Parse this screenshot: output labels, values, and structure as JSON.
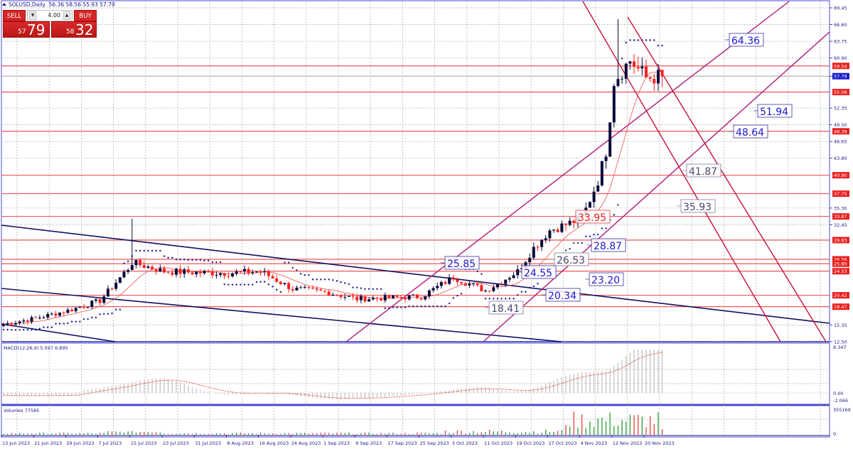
{
  "header": {
    "symbol": "SOLUSD,Daily",
    "ohlc": "56.36 58.56 55.93 57.79"
  },
  "trade_panel": {
    "sell_label": "SELL",
    "buy_label": "BUY",
    "lot_value": "4.00",
    "sell_price_small": "57",
    "sell_price_big": "79",
    "buy_price_small": "58",
    "buy_price_big": "32"
  },
  "colors": {
    "bull_candle": "#0a0a3c",
    "bear_candle": "#ff2020",
    "level_line": "#e84545",
    "channel_up": "#b0177a",
    "channel_down": "#c8103c",
    "trend_navy": "#101060",
    "axis_text": "#1a1a8c",
    "price_tag_red": "#e82020",
    "price_tag_blue": "#1a1acc"
  },
  "price_axis": {
    "ticks": [
      "69.45",
      "66.60",
      "63.75",
      "60.90",
      "57.79",
      "52.35",
      "49.50",
      "46.65",
      "43.80",
      "35.30",
      "32.45",
      "15.35",
      "12.50"
    ],
    "current_price": "57.79"
  },
  "level_tags": [
    "59.54",
    "55.08",
    "48.39",
    "40.90",
    "37.75",
    "33.87",
    "29.83",
    "26.56",
    "25.80",
    "24.53",
    "20.42",
    "18.47"
  ],
  "annotations": [
    {
      "text": "64.36",
      "style": "blue"
    },
    {
      "text": "51.94",
      "style": "blue"
    },
    {
      "text": "48.64",
      "style": "blue"
    },
    {
      "text": "41.87",
      "style": "gray"
    },
    {
      "text": "35.93",
      "style": "gray"
    },
    {
      "text": "33.95",
      "style": "red"
    },
    {
      "text": "28.87",
      "style": "blue"
    },
    {
      "text": "26.53",
      "style": "gray"
    },
    {
      "text": "25.85",
      "style": "blue"
    },
    {
      "text": "24.55",
      "style": "blue"
    },
    {
      "text": "23.20",
      "style": "blue"
    },
    {
      "text": "20.34",
      "style": "blue"
    },
    {
      "text": "18.41",
      "style": "gray"
    }
  ],
  "macd": {
    "label": "MACD(12,26,9) 5.597 6.895",
    "axis_max": "8.347",
    "axis_zero": "0.00",
    "axis_min": "-2.066"
  },
  "volumes": {
    "label": "Volumes 77585",
    "axis_max": "355169",
    "axis_min": "0"
  },
  "dates": [
    "13 Jun 2023",
    "21 Jun 2023",
    "29 Jun 2023",
    "7 Jul 2023",
    "15 Jul 2023",
    "23 Jul 2023",
    "31 Jul 2023",
    "8 Aug 2023",
    "16 Aug 2023",
    "24 Aug 2023",
    "1 Sep 2023",
    "9 Sep 2023",
    "17 Sep 2023",
    "25 Sep 2023",
    "3 Oct 2023",
    "11 Oct 2023",
    "19 Oct 2023",
    "27 Oct 2023",
    "4 Nov 2023",
    "12 Nov 2023",
    "20 Nov 2023"
  ],
  "chart_data": {
    "type": "candlestick",
    "title": "SOLUSD, Daily",
    "symbol": "SOLUSD",
    "timeframe": "Daily",
    "last_bar": {
      "open": 56.36,
      "high": 58.56,
      "low": 55.93,
      "close": 57.79
    },
    "bid": 57.79,
    "ask": 58.32,
    "x_range": [
      "13 Jun 2023",
      "24 Nov 2023"
    ],
    "y_range": [
      12.5,
      69.45
    ],
    "horizontal_levels": [
      59.54,
      55.08,
      48.39,
      40.9,
      37.75,
      33.87,
      29.83,
      26.56,
      25.8,
      24.53,
      20.42,
      18.47
    ],
    "price_annotations": [
      64.36,
      51.94,
      48.64,
      41.87,
      35.93,
      33.95,
      28.87,
      26.53,
      25.85,
      24.55,
      23.2,
      20.34,
      18.41
    ],
    "approx_closes": {
      "x": [
        "13 Jun",
        "21 Jun",
        "29 Jun",
        "7 Jul",
        "14 Jul",
        "15 Jul",
        "23 Jul",
        "31 Jul",
        "8 Aug",
        "16 Aug",
        "24 Aug",
        "1 Sep",
        "9 Sep",
        "17 Sep",
        "25 Sep",
        "3 Oct",
        "11 Oct",
        "19 Oct",
        "23 Oct",
        "27 Oct",
        "4 Nov",
        "8 Nov",
        "10 Nov",
        "12 Nov",
        "16 Nov",
        "20 Nov",
        "24 Nov"
      ],
      "close": [
        15.5,
        16.5,
        17.8,
        19.5,
        25.0,
        26.0,
        24.5,
        24.3,
        24.2,
        24.5,
        21.5,
        21.0,
        19.8,
        20.0,
        20.2,
        23.5,
        21.2,
        24.5,
        28.5,
        31.5,
        33.5,
        40.0,
        45.0,
        57.0,
        60.5,
        57.5,
        57.79
      ]
    },
    "indicators": [
      {
        "name": "Parabolic SAR",
        "style": "navy dots"
      },
      {
        "name": "Moving Average",
        "style": "thin red line"
      },
      {
        "name": "MACD(12,26,9)",
        "main": 5.597,
        "signal": 6.895,
        "range": [
          -2.066,
          8.347
        ]
      },
      {
        "name": "Volumes",
        "value": 77585,
        "range": [
          0,
          355169
        ]
      }
    ],
    "trendlines": [
      {
        "name": "ascending channel",
        "color": "magenta",
        "count": 2
      },
      {
        "name": "descending channel (short-term)",
        "color": "crimson",
        "count": 2
      },
      {
        "name": "descending channel (long-term)",
        "color": "navy",
        "count": 3
      }
    ]
  }
}
